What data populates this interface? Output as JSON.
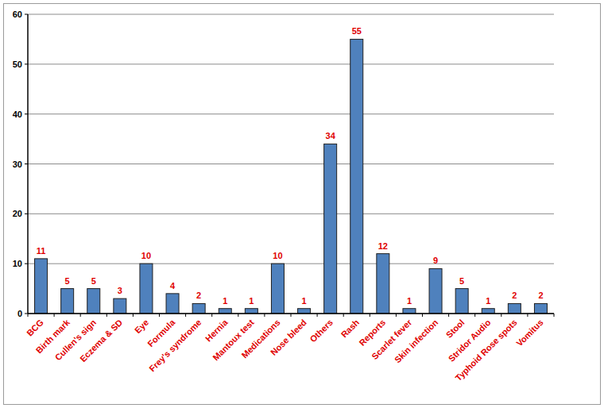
{
  "chart_data": {
    "type": "bar",
    "categories": [
      "BCG",
      "Birth mark",
      "Cullen's sign",
      "Eczema & SD",
      "Eye",
      "Formula",
      "Frey's syndrome",
      "Hernia",
      "Mantoux test",
      "Medications",
      "Nose bleed",
      "Others",
      "Rash",
      "Reports",
      "Scarlet fever",
      "Skin infection",
      "Stool",
      "Stridor Audio",
      "Typhoid Rose spots",
      "Vomitus"
    ],
    "values": [
      11,
      5,
      5,
      3,
      10,
      4,
      2,
      1,
      1,
      10,
      1,
      34,
      55,
      12,
      1,
      9,
      5,
      1,
      2,
      2
    ],
    "color": "#4f81bd",
    "ylim": [
      0,
      60
    ],
    "yticks": [
      0,
      10,
      20,
      30,
      40,
      50,
      60
    ],
    "grid": true,
    "data_labels": true
  }
}
